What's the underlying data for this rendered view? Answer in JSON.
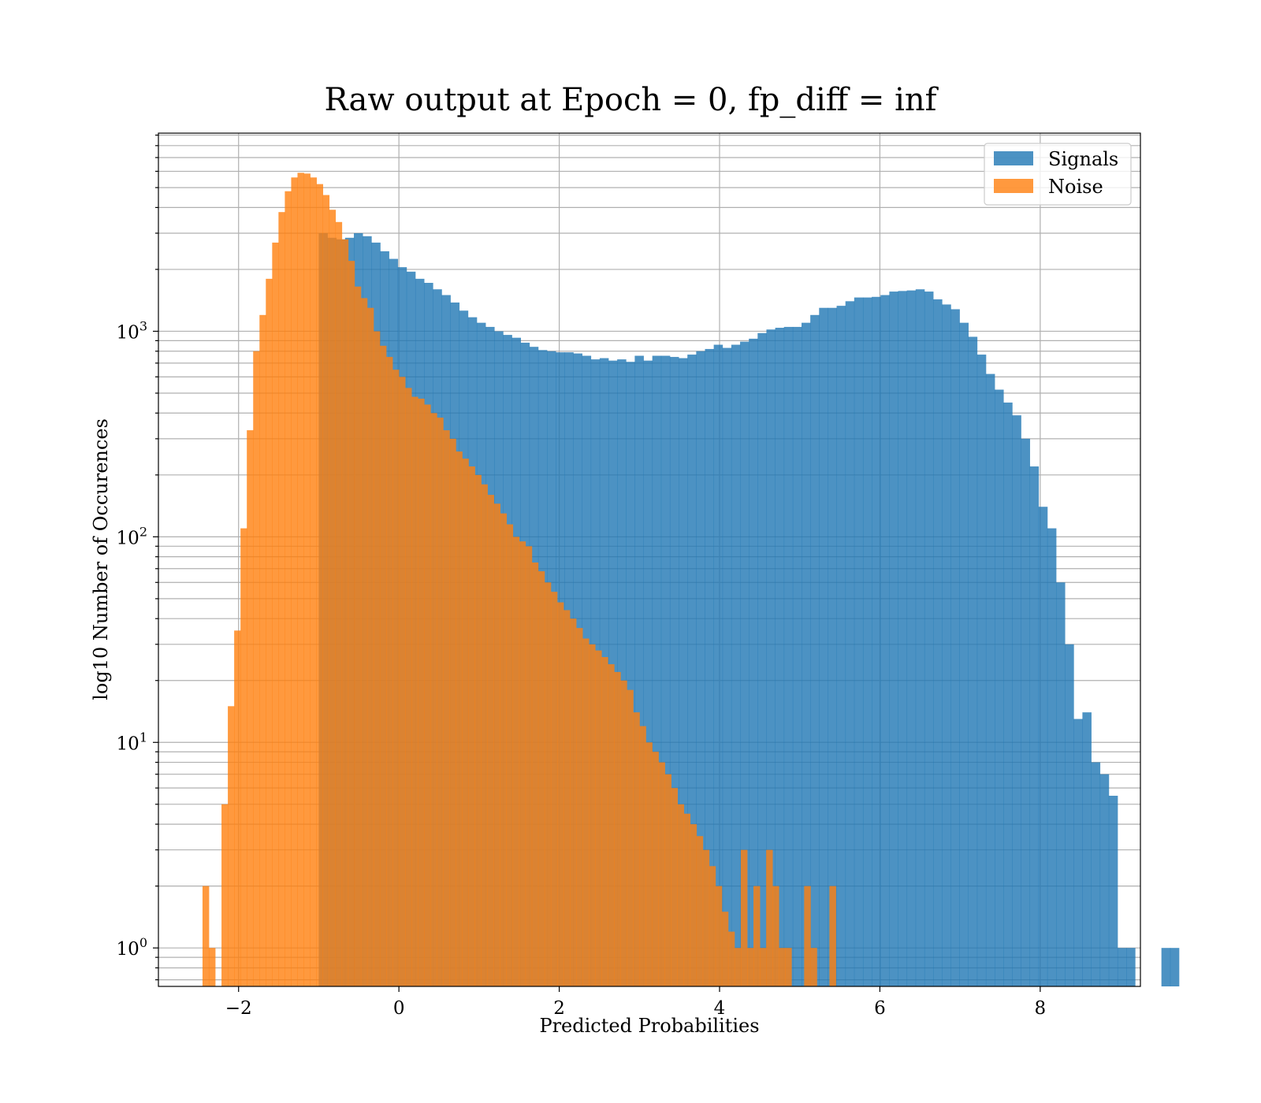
{
  "chart_data": {
    "type": "bar",
    "subtype": "overlaid-histogram",
    "title": "Raw output at Epoch = 0, fp_diff = inf",
    "xlabel": "Predicted Probabilities",
    "ylabel": "log10 Number of Occurences",
    "xlim": [
      -3.0,
      9.25
    ],
    "ylim": [
      0.65,
      9200
    ],
    "yscale": "log",
    "grid": true,
    "legend_position": "top-right",
    "x_ticks": [
      {
        "value": -2,
        "label": "−2"
      },
      {
        "value": 0,
        "label": "0"
      },
      {
        "value": 2,
        "label": "2"
      },
      {
        "value": 4,
        "label": "4"
      },
      {
        "value": 6,
        "label": "6"
      },
      {
        "value": 8,
        "label": "8"
      }
    ],
    "y_ticks": [
      {
        "value": 1,
        "base": "10",
        "exp": "0"
      },
      {
        "value": 10,
        "base": "10",
        "exp": "1"
      },
      {
        "value": 100,
        "base": "10",
        "exp": "2"
      },
      {
        "value": 1000,
        "base": "10",
        "exp": "3"
      }
    ],
    "series": [
      {
        "name": "Signals",
        "color": "#1f77b4",
        "opacity": 0.8,
        "bin_start": -1.0,
        "bin_width": 0.1095,
        "counts": [
          3000,
          2850,
          2800,
          2850,
          3000,
          2900,
          2700,
          2450,
          2250,
          2050,
          1950,
          1800,
          1720,
          1600,
          1500,
          1380,
          1260,
          1170,
          1100,
          1050,
          1000,
          960,
          930,
          880,
          840,
          810,
          800,
          790,
          790,
          780,
          760,
          730,
          740,
          720,
          730,
          710,
          760,
          720,
          760,
          760,
          750,
          740,
          770,
          800,
          820,
          860,
          830,
          860,
          890,
          920,
          980,
          1020,
          1040,
          1050,
          1050,
          1100,
          1200,
          1300,
          1300,
          1330,
          1400,
          1460,
          1460,
          1470,
          1500,
          1560,
          1570,
          1580,
          1600,
          1560,
          1430,
          1350,
          1280,
          1100,
          940,
          770,
          620,
          520,
          450,
          390,
          300,
          220,
          140,
          110,
          60,
          30,
          13,
          14,
          8,
          7,
          5.5,
          1,
          1,
          0,
          0,
          0,
          1,
          1
        ]
      },
      {
        "name": "Noise",
        "color": "#ff7f0e",
        "opacity": 0.8,
        "bin_start": -2.45,
        "bin_width": 0.079,
        "counts": [
          2,
          1,
          0,
          5,
          15,
          35,
          110,
          330,
          800,
          1200,
          1800,
          2700,
          3800,
          4800,
          5600,
          5900,
          5850,
          5600,
          5200,
          4600,
          3900,
          3400,
          2800,
          2200,
          1650,
          1450,
          1300,
          1000,
          850,
          750,
          650,
          600,
          530,
          480,
          470,
          440,
          400,
          380,
          330,
          300,
          260,
          240,
          220,
          200,
          180,
          160,
          145,
          130,
          115,
          100,
          95,
          90,
          75,
          68,
          60,
          54,
          48,
          44,
          40,
          36,
          32,
          30,
          28,
          26,
          24,
          22,
          20,
          18,
          14,
          12,
          10,
          9,
          8,
          7,
          6,
          5,
          4.5,
          4,
          3.5,
          3,
          2.5,
          2,
          1.5,
          1.2,
          1,
          3,
          1,
          2,
          1,
          3,
          2,
          1,
          1,
          0,
          0,
          2,
          1,
          0,
          0,
          2
        ]
      }
    ]
  }
}
